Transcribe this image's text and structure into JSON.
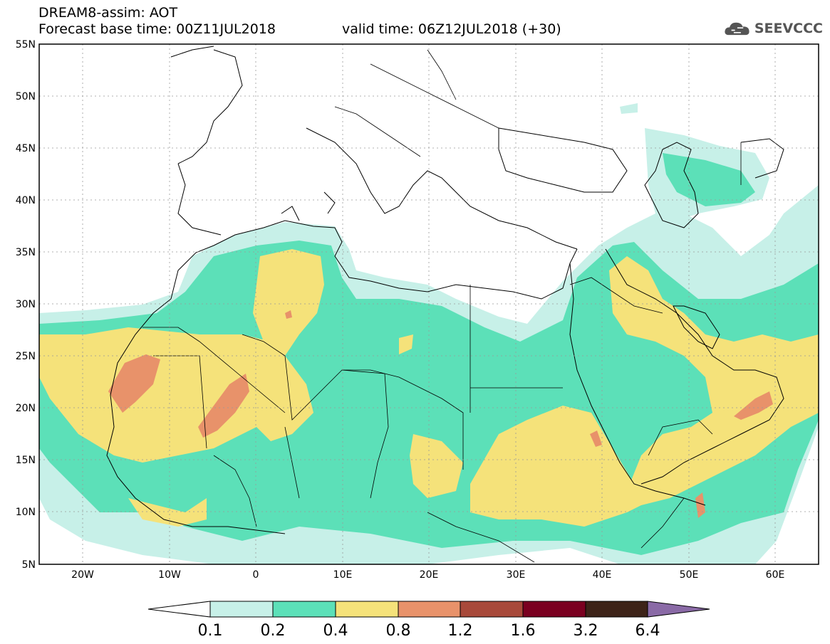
{
  "header": {
    "title": "DREAM8-assim: AOT",
    "base_time": "Forecast base time: 00Z11JUL2018",
    "valid_time": "valid time: 06Z12JUL2018 (+30)"
  },
  "logo": {
    "text": "SEEVCCC",
    "icon": "cloud-icon"
  },
  "map": {
    "lat_labels": [
      "55N",
      "50N",
      "45N",
      "40N",
      "35N",
      "30N",
      "25N",
      "20N",
      "15N",
      "10N",
      "5N"
    ],
    "lon_labels": [
      "20W",
      "10W",
      "0",
      "10E",
      "20E",
      "30E",
      "40E",
      "50E",
      "60E"
    ]
  },
  "colorbar": {
    "levels": [
      "0.1",
      "0.2",
      "0.4",
      "0.8",
      "1.2",
      "1.6",
      "3.2",
      "6.4"
    ],
    "colors": [
      "#c7f0e8",
      "#5ce0b8",
      "#f5e27a",
      "#e8926a",
      "#a8493a",
      "#7a0020",
      "#3d2318",
      "#8a6aa6"
    ]
  }
}
